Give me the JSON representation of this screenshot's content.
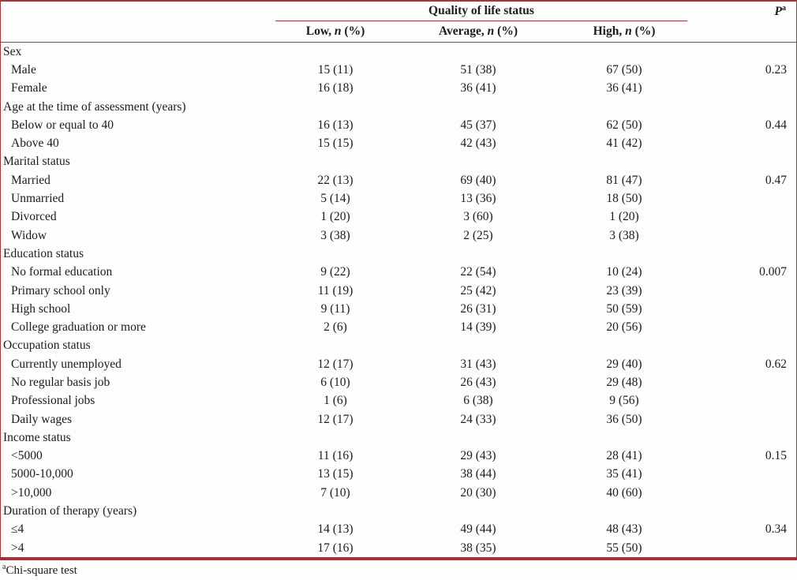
{
  "table": {
    "header_group": "Quality of life status",
    "p_header": {
      "letter": "P",
      "sup": "a"
    },
    "columns": [
      {
        "pre": "Low, ",
        "n": "n",
        "post": " (%)"
      },
      {
        "pre": "Average, ",
        "n": "n",
        "post": " (%)"
      },
      {
        "pre": "High, ",
        "n": "n",
        "post": " (%)"
      }
    ],
    "rows": [
      {
        "type": "category",
        "label": "Sex",
        "low": "",
        "avg": "",
        "high": "",
        "p": ""
      },
      {
        "type": "data",
        "label": "Male",
        "low": "15 (11)",
        "avg": "51 (38)",
        "high": "67 (50)",
        "p": "0.23"
      },
      {
        "type": "data",
        "label": "Female",
        "low": "16 (18)",
        "avg": "36 (41)",
        "high": "36 (41)",
        "p": ""
      },
      {
        "type": "category",
        "label": "Age at the time of assessment (years)",
        "low": "",
        "avg": "",
        "high": "",
        "p": ""
      },
      {
        "type": "data",
        "label": "Below or equal to 40",
        "low": "16 (13)",
        "avg": "45 (37)",
        "high": "62 (50)",
        "p": "0.44"
      },
      {
        "type": "data",
        "label": "Above 40",
        "low": "15 (15)",
        "avg": "42 (43)",
        "high": "41 (42)",
        "p": ""
      },
      {
        "type": "category",
        "label": "Marital status",
        "low": "",
        "avg": "",
        "high": "",
        "p": ""
      },
      {
        "type": "data",
        "label": "Married",
        "low": "22 (13)",
        "avg": "69 (40)",
        "high": "81 (47)",
        "p": "0.47"
      },
      {
        "type": "data",
        "label": "Unmarried",
        "low": "5 (14)",
        "avg": "13 (36)",
        "high": "18 (50)",
        "p": ""
      },
      {
        "type": "data",
        "label": "Divorced",
        "low": "1 (20)",
        "avg": "3 (60)",
        "high": "1 (20)",
        "p": ""
      },
      {
        "type": "data",
        "label": "Widow",
        "low": "3 (38)",
        "avg": "2 (25)",
        "high": "3 (38)",
        "p": ""
      },
      {
        "type": "category",
        "label": "Education status",
        "low": "",
        "avg": "",
        "high": "",
        "p": ""
      },
      {
        "type": "data",
        "label": "No formal education",
        "low": "9 (22)",
        "avg": "22 (54)",
        "high": "10 (24)",
        "p": "0.007"
      },
      {
        "type": "data",
        "label": "Primary school only",
        "low": "11 (19)",
        "avg": "25 (42)",
        "high": "23 (39)",
        "p": ""
      },
      {
        "type": "data",
        "label": "High school",
        "low": "9 (11)",
        "avg": "26 (31)",
        "high": "50 (59)",
        "p": ""
      },
      {
        "type": "data",
        "label": "College graduation or more",
        "low": "2 (6)",
        "avg": "14 (39)",
        "high": "20 (56)",
        "p": ""
      },
      {
        "type": "category",
        "label": "Occupation status",
        "low": "",
        "avg": "",
        "high": "",
        "p": ""
      },
      {
        "type": "data",
        "label": "Currently unemployed",
        "low": "12 (17)",
        "avg": "31 (43)",
        "high": "29 (40)",
        "p": "0.62"
      },
      {
        "type": "data",
        "label": "No regular basis job",
        "low": "6 (10)",
        "avg": "26 (43)",
        "high": "29 (48)",
        "p": ""
      },
      {
        "type": "data",
        "label": "Professional jobs",
        "low": "1 (6)",
        "avg": "6 (38)",
        "high": "9 (56)",
        "p": ""
      },
      {
        "type": "data",
        "label": "Daily wages",
        "low": "12 (17)",
        "avg": "24 (33)",
        "high": "36 (50)",
        "p": ""
      },
      {
        "type": "category",
        "label": "Income status",
        "low": "",
        "avg": "",
        "high": "",
        "p": ""
      },
      {
        "type": "data",
        "label": "<5000",
        "low": "11 (16)",
        "avg": "29 (43)",
        "high": "28 (41)",
        "p": "0.15"
      },
      {
        "type": "data",
        "label": "5000-10,000",
        "low": "13 (15)",
        "avg": "38 (44)",
        "high": "35 (41)",
        "p": ""
      },
      {
        "type": "data",
        "label": ">10,000",
        "low": "7 (10)",
        "avg": "20 (30)",
        "high": "40 (60)",
        "p": ""
      },
      {
        "type": "category",
        "label": "Duration of therapy (years)",
        "low": "",
        "avg": "",
        "high": "",
        "p": ""
      },
      {
        "type": "data",
        "label": "≤4",
        "low": "14 (13)",
        "avg": "49 (44)",
        "high": "48 (43)",
        "p": "0.34"
      },
      {
        "type": "data",
        "label": ">4",
        "low": "17 (16)",
        "avg": "38 (35)",
        "high": "55 (50)",
        "p": ""
      }
    ],
    "footnote": {
      "sup": "a",
      "text": "Chi-square test"
    }
  },
  "colors": {
    "rule_thin": "#9c3a3f",
    "rule_thick": "#a93036",
    "text": "#1c1c1c"
  }
}
